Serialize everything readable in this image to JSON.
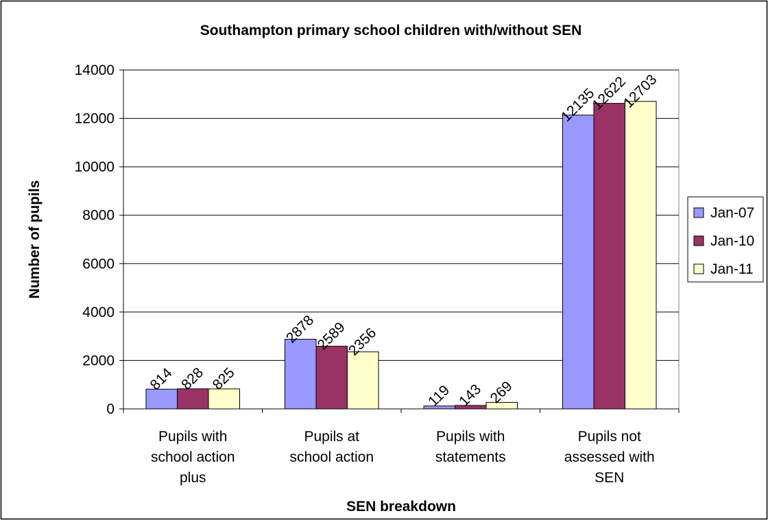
{
  "chart_data": {
    "type": "bar",
    "title": "Southampton primary school children with/without SEN",
    "xlabel": "SEN breakdown",
    "ylabel": "Number of pupils",
    "categories": [
      [
        "Pupils with",
        "school action",
        "plus"
      ],
      [
        "Pupils at",
        "school action"
      ],
      [
        "Pupils with",
        "statements"
      ],
      [
        "Pupils not",
        "assessed with",
        "SEN"
      ]
    ],
    "series": [
      {
        "name": "Jan-07",
        "color": "#9999ff",
        "values": [
          814,
          2878,
          119,
          12135
        ]
      },
      {
        "name": "Jan-10",
        "color": "#993366",
        "values": [
          828,
          2589,
          143,
          12622
        ]
      },
      {
        "name": "Jan-11",
        "color": "#ffffcc",
        "values": [
          825,
          2356,
          269,
          12703
        ]
      }
    ],
    "ylim": [
      0,
      14000
    ],
    "yticks": [
      0,
      2000,
      4000,
      6000,
      8000,
      10000,
      12000,
      14000
    ],
    "grid": true,
    "legend_position": "right"
  }
}
